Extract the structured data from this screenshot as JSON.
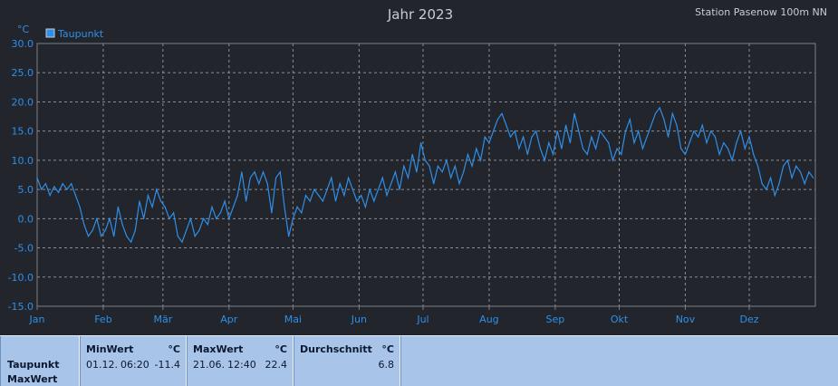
{
  "header": {
    "title": "Jahr 2023",
    "station": "Station Pasenow 100m NN"
  },
  "chart_data": {
    "type": "line",
    "title": "Jahr 2023",
    "unit": "°C",
    "ylim": [
      -15,
      30
    ],
    "yticks": [
      "30.0",
      "25.0",
      "20.0",
      "15.0",
      "10.0",
      "5.0",
      "0.0",
      "-5.0",
      "-10.0",
      "-15.0"
    ],
    "ytick_values": [
      30,
      25,
      20,
      15,
      10,
      5,
      0,
      -5,
      -10,
      -15
    ],
    "months": [
      "Jan",
      "Feb",
      "Mär",
      "Apr",
      "Mai",
      "Jun",
      "Jul",
      "Aug",
      "Sep",
      "Okt",
      "Nov",
      "Dez"
    ],
    "month_start_days": [
      0,
      31,
      59,
      90,
      120,
      151,
      181,
      212,
      243,
      273,
      304,
      334
    ],
    "days_in_year": 365,
    "grid": true,
    "legend": "top-left",
    "colors": {
      "line": "#2f8fe8",
      "background": "#22252c",
      "grid": "#8a8d93",
      "frame": "#7c7f85"
    },
    "series": [
      {
        "name": "Taupunkt",
        "x_unit": "day of year",
        "points": [
          [
            0,
            7
          ],
          [
            2,
            5
          ],
          [
            4,
            6
          ],
          [
            6,
            4
          ],
          [
            8,
            5.5
          ],
          [
            10,
            4.5
          ],
          [
            12,
            6
          ],
          [
            14,
            5
          ],
          [
            16,
            6
          ],
          [
            18,
            4
          ],
          [
            20,
            2
          ],
          [
            22,
            -1
          ],
          [
            24,
            -3
          ],
          [
            26,
            -2
          ],
          [
            28,
            0
          ],
          [
            30,
            -3
          ],
          [
            32,
            -2
          ],
          [
            34,
            0
          ],
          [
            36,
            -3
          ],
          [
            38,
            2
          ],
          [
            40,
            -1
          ],
          [
            42,
            -3
          ],
          [
            44,
            -4
          ],
          [
            46,
            -2
          ],
          [
            48,
            3
          ],
          [
            50,
            0
          ],
          [
            52,
            4
          ],
          [
            54,
            2
          ],
          [
            56,
            5
          ],
          [
            58,
            3
          ],
          [
            60,
            2
          ],
          [
            62,
            0
          ],
          [
            64,
            1
          ],
          [
            66,
            -3
          ],
          [
            68,
            -4
          ],
          [
            70,
            -2
          ],
          [
            72,
            0
          ],
          [
            74,
            -3
          ],
          [
            76,
            -2
          ],
          [
            78,
            0
          ],
          [
            80,
            -1
          ],
          [
            82,
            2
          ],
          [
            84,
            0
          ],
          [
            86,
            1
          ],
          [
            88,
            3
          ],
          [
            90,
            0
          ],
          [
            92,
            2
          ],
          [
            94,
            4
          ],
          [
            96,
            8
          ],
          [
            98,
            3
          ],
          [
            100,
            7
          ],
          [
            102,
            8
          ],
          [
            104,
            6
          ],
          [
            106,
            8
          ],
          [
            108,
            6
          ],
          [
            110,
            1
          ],
          [
            112,
            7
          ],
          [
            114,
            8
          ],
          [
            116,
            2
          ],
          [
            118,
            -3
          ],
          [
            120,
            0
          ],
          [
            122,
            2
          ],
          [
            124,
            1
          ],
          [
            126,
            4
          ],
          [
            128,
            3
          ],
          [
            130,
            5
          ],
          [
            132,
            4
          ],
          [
            134,
            3
          ],
          [
            136,
            5
          ],
          [
            138,
            7
          ],
          [
            140,
            3
          ],
          [
            142,
            6
          ],
          [
            144,
            4
          ],
          [
            146,
            7
          ],
          [
            148,
            5
          ],
          [
            150,
            3
          ],
          [
            152,
            4
          ],
          [
            154,
            2
          ],
          [
            156,
            5
          ],
          [
            158,
            3
          ],
          [
            160,
            5
          ],
          [
            162,
            7
          ],
          [
            164,
            4
          ],
          [
            166,
            6
          ],
          [
            168,
            8
          ],
          [
            170,
            5
          ],
          [
            172,
            9
          ],
          [
            174,
            7
          ],
          [
            176,
            11
          ],
          [
            178,
            8
          ],
          [
            180,
            13
          ],
          [
            182,
            10
          ],
          [
            184,
            9
          ],
          [
            186,
            6
          ],
          [
            188,
            9
          ],
          [
            190,
            8
          ],
          [
            192,
            10
          ],
          [
            194,
            7
          ],
          [
            196,
            9
          ],
          [
            198,
            6
          ],
          [
            200,
            8
          ],
          [
            202,
            11
          ],
          [
            204,
            9
          ],
          [
            206,
            12
          ],
          [
            208,
            10
          ],
          [
            210,
            14
          ],
          [
            212,
            13
          ],
          [
            214,
            15
          ],
          [
            216,
            17
          ],
          [
            218,
            18
          ],
          [
            220,
            16
          ],
          [
            222,
            14
          ],
          [
            224,
            15
          ],
          [
            226,
            12
          ],
          [
            228,
            14
          ],
          [
            230,
            11
          ],
          [
            232,
            14
          ],
          [
            234,
            15
          ],
          [
            236,
            12
          ],
          [
            238,
            10
          ],
          [
            240,
            13
          ],
          [
            242,
            11
          ],
          [
            244,
            15
          ],
          [
            246,
            12
          ],
          [
            248,
            16
          ],
          [
            250,
            13
          ],
          [
            252,
            18
          ],
          [
            254,
            15
          ],
          [
            256,
            12
          ],
          [
            258,
            11
          ],
          [
            260,
            14
          ],
          [
            262,
            12
          ],
          [
            264,
            15
          ],
          [
            266,
            14
          ],
          [
            268,
            13
          ],
          [
            270,
            10
          ],
          [
            272,
            12
          ],
          [
            274,
            11
          ],
          [
            276,
            15
          ],
          [
            278,
            17
          ],
          [
            280,
            13
          ],
          [
            282,
            15
          ],
          [
            284,
            12
          ],
          [
            286,
            14
          ],
          [
            288,
            16
          ],
          [
            290,
            18
          ],
          [
            292,
            19
          ],
          [
            294,
            17
          ],
          [
            296,
            14
          ],
          [
            298,
            18
          ],
          [
            300,
            16
          ],
          [
            302,
            12
          ],
          [
            304,
            11
          ],
          [
            306,
            13
          ],
          [
            308,
            15
          ],
          [
            310,
            14
          ],
          [
            312,
            16
          ],
          [
            314,
            13
          ],
          [
            316,
            15
          ],
          [
            318,
            14
          ],
          [
            320,
            11
          ],
          [
            322,
            13
          ],
          [
            324,
            12
          ],
          [
            326,
            10
          ],
          [
            328,
            13
          ],
          [
            330,
            15
          ],
          [
            332,
            12
          ],
          [
            334,
            14
          ],
          [
            336,
            11
          ],
          [
            338,
            9
          ],
          [
            340,
            6
          ],
          [
            342,
            5
          ],
          [
            344,
            7
          ],
          [
            346,
            4
          ],
          [
            348,
            6
          ],
          [
            350,
            9
          ],
          [
            352,
            10
          ],
          [
            354,
            7
          ],
          [
            356,
            9
          ],
          [
            358,
            8
          ],
          [
            360,
            6
          ],
          [
            362,
            8
          ],
          [
            364,
            7
          ]
        ]
      }
    ]
  },
  "stats": {
    "row_label_1": "Taupunkt",
    "row_label_2": "MaxWert",
    "columns": [
      {
        "header": "MinWert",
        "unit": "°C",
        "date": "01.12.",
        "time": "06:20",
        "value": "-11.4"
      },
      {
        "header": "MaxWert",
        "unit": "°C",
        "date": "21.06.",
        "time": "12:40",
        "value": "22.4"
      },
      {
        "header": "Durchschnitt",
        "unit": "°C",
        "date": "",
        "time": "",
        "value": "6.8"
      }
    ]
  }
}
